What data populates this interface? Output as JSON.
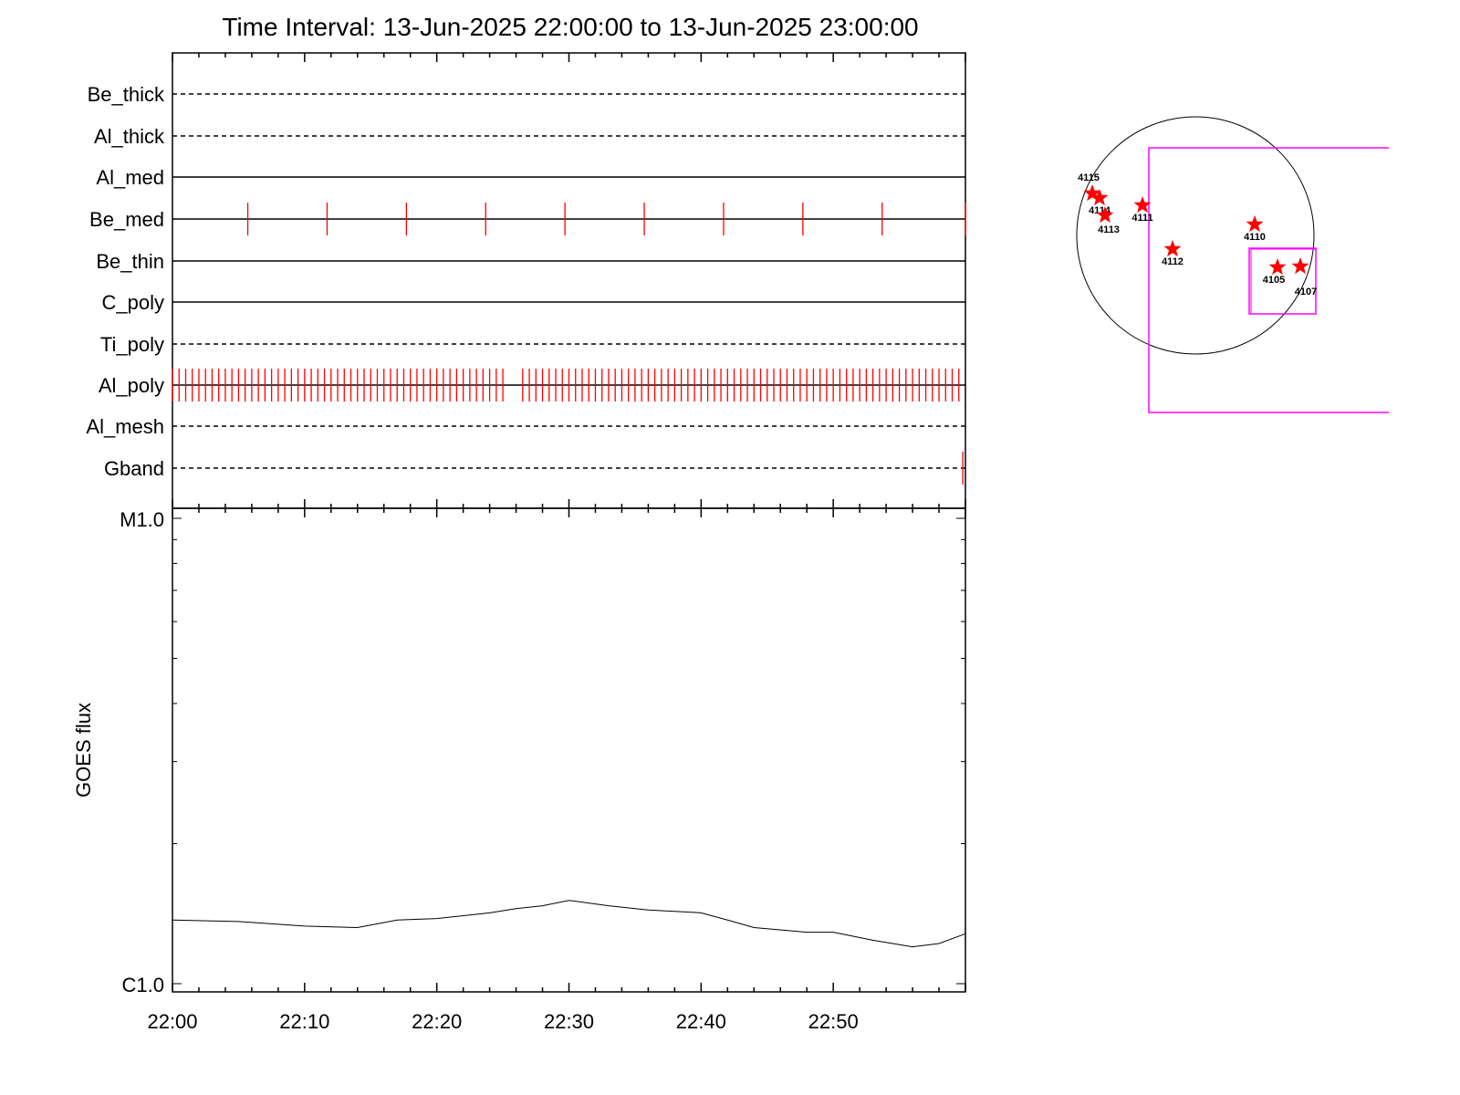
{
  "chart_data": [
    {
      "type": "event-timeline",
      "title": "Time Interval: 13-Jun-2025 22:00:00 to 13-Jun-2025 23:00:00",
      "x_unit": "minutes after 22:00",
      "xlim": [
        0,
        60
      ],
      "rows": [
        {
          "name": "Be_thick",
          "style": "dashed",
          "events": []
        },
        {
          "name": "Al_thick",
          "style": "dashed",
          "events": []
        },
        {
          "name": "Al_med",
          "style": "solid",
          "events": []
        },
        {
          "name": "Be_med",
          "style": "solid",
          "events": [
            5.7,
            11.7,
            17.7,
            23.7,
            29.7,
            35.7,
            41.7,
            47.7,
            53.7,
            60
          ]
        },
        {
          "name": "Be_thin",
          "style": "solid",
          "events": []
        },
        {
          "name": "C_poly",
          "style": "solid",
          "events": []
        },
        {
          "name": "Ti_poly",
          "style": "dashed",
          "events": []
        },
        {
          "name": "Al_poly",
          "style": "solid",
          "events": [
            0,
            0.5,
            1,
            1.5,
            2,
            2.5,
            3,
            3.5,
            4,
            4.5,
            5,
            5.5,
            6,
            6.5,
            7,
            7.5,
            8,
            8.5,
            9,
            9.5,
            10,
            10.5,
            11,
            11.5,
            12,
            12.5,
            13,
            13.5,
            14,
            14.5,
            15,
            15.5,
            16,
            16.5,
            17,
            17.5,
            18,
            18.5,
            19,
            19.5,
            20,
            20.5,
            21,
            21.5,
            22,
            22.5,
            23,
            23.5,
            24,
            24.5,
            25,
            26.5,
            27,
            27.5,
            28,
            28.5,
            29,
            29.5,
            30,
            30.5,
            31,
            31.5,
            32,
            32.5,
            33,
            33.5,
            34,
            34.5,
            35,
            35.5,
            36,
            36.5,
            37,
            37.5,
            38,
            38.5,
            39,
            39.5,
            40,
            40.5,
            41,
            41.5,
            42,
            42.5,
            43,
            43.5,
            44,
            44.5,
            45,
            45.5,
            46,
            46.5,
            47,
            47.5,
            48,
            48.5,
            49,
            49.5,
            50,
            50.5,
            51,
            51.5,
            52,
            52.5,
            53,
            53.5,
            54,
            54.5,
            55,
            55.5,
            56,
            56.5,
            57,
            57.5,
            58,
            58.5,
            59,
            59.5
          ]
        },
        {
          "name": "Al_mesh",
          "style": "dashed",
          "events": []
        },
        {
          "name": "Gband",
          "style": "dashed",
          "events": [
            59.8
          ]
        }
      ],
      "event_color": "#ff0000"
    },
    {
      "type": "line",
      "ylabel": "GOES flux",
      "yscale": "log",
      "ylim": [
        1e-06,
        1e-05
      ],
      "ytick_labels": [
        "C1.0",
        "M1.0"
      ],
      "xtick_labels": [
        "22:00",
        "22:10",
        "22:20",
        "22:30",
        "22:40",
        "22:50"
      ],
      "x_unit": "minutes after 22:00",
      "x": [
        0,
        5,
        10,
        14,
        17,
        20,
        24,
        26,
        28,
        30,
        33,
        36,
        40,
        42,
        44,
        48,
        50,
        53,
        56,
        58,
        60
      ],
      "y": [
        1.37e-06,
        1.36e-06,
        1.33e-06,
        1.32e-06,
        1.37e-06,
        1.38e-06,
        1.42e-06,
        1.45e-06,
        1.47e-06,
        1.51e-06,
        1.47e-06,
        1.44e-06,
        1.42e-06,
        1.37e-06,
        1.32e-06,
        1.29e-06,
        1.29e-06,
        1.24e-06,
        1.2e-06,
        1.22e-06,
        1.28e-06
      ],
      "color": "#000000"
    },
    {
      "type": "solar-disk-map",
      "active_regions": [
        "4115",
        "4114",
        "4113",
        "4111",
        "4112",
        "4110",
        "4105",
        "4107"
      ],
      "marker_color": "#ff0000",
      "fov_color": "#ff00ff"
    }
  ]
}
